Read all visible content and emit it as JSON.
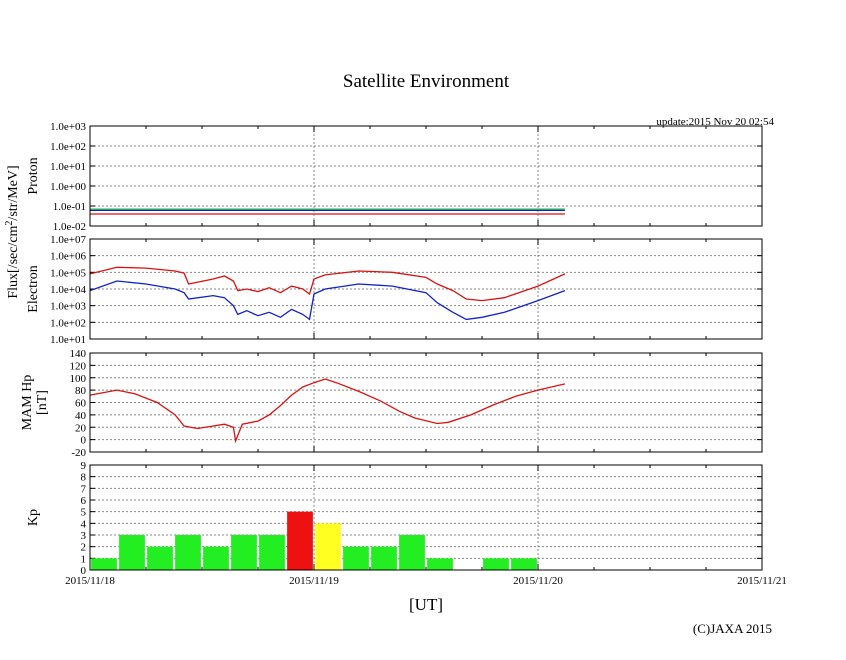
{
  "chart_data": [
    {
      "type": "line",
      "panel": "proton",
      "title": "Satellite Environment",
      "update": "update:2015 Nov 20 02:54",
      "ylabel_lines": [
        "Proton"
      ],
      "yscale": "log",
      "ylim": [
        0.01,
        1000.0
      ],
      "yticks": [
        "1.0e-02",
        "1.0e-01",
        "1.0e+00",
        "1.0e+01",
        "1.0e+02",
        "1.0e+03"
      ],
      "xlim_days": [
        0,
        3
      ],
      "series": [
        {
          "name": "proton-1",
          "color": "#dd1111",
          "x": [
            0,
            0.5,
            1.0,
            1.5,
            2.12
          ],
          "y": [
            0.04,
            0.04,
            0.04,
            0.04,
            0.04
          ]
        },
        {
          "name": "proton-2",
          "color": "#11bb33",
          "x": [
            0,
            0.5,
            1.0,
            1.5,
            2.12
          ],
          "y": [
            0.07,
            0.07,
            0.07,
            0.07,
            0.07
          ]
        },
        {
          "name": "proton-3",
          "color": "#1122cc",
          "x": [
            0,
            0.5,
            1.0,
            1.5,
            2.12
          ],
          "y": [
            0.06,
            0.06,
            0.06,
            0.06,
            0.06
          ]
        }
      ]
    },
    {
      "type": "line",
      "panel": "electron",
      "ylabel_lines": [
        "Electron"
      ],
      "yscale": "log",
      "ylim": [
        10.0,
        10000000.0
      ],
      "yticks": [
        "1.0e+01",
        "1.0e+02",
        "1.0e+03",
        "1.0e+04",
        "1.0e+05",
        "1.0e+06",
        "1.0e+07"
      ],
      "xlim_days": [
        0,
        3
      ],
      "series": [
        {
          "name": "electron-high",
          "color": "#dd1111",
          "x": [
            0,
            0.12,
            0.25,
            0.38,
            0.42,
            0.44,
            0.55,
            0.6,
            0.64,
            0.66,
            0.7,
            0.75,
            0.8,
            0.85,
            0.9,
            0.95,
            0.98,
            1.0,
            1.05,
            1.2,
            1.35,
            1.5,
            1.55,
            1.62,
            1.68,
            1.75,
            1.85,
            2.0,
            2.12
          ],
          "y": [
            80000,
            200000,
            180000,
            120000,
            90000,
            20000,
            40000,
            60000,
            30000,
            8000,
            10000,
            7000,
            12000,
            6000,
            15000,
            10000,
            5000,
            40000,
            70000,
            120000,
            100000,
            50000,
            20000,
            8000,
            2500,
            2000,
            3000,
            15000,
            80000
          ]
        },
        {
          "name": "electron-low",
          "color": "#1122cc",
          "x": [
            0,
            0.12,
            0.25,
            0.38,
            0.42,
            0.44,
            0.55,
            0.6,
            0.64,
            0.66,
            0.7,
            0.75,
            0.8,
            0.85,
            0.9,
            0.95,
            0.98,
            1.0,
            1.05,
            1.2,
            1.35,
            1.5,
            1.55,
            1.62,
            1.68,
            1.75,
            1.85,
            2.0,
            2.12
          ],
          "y": [
            8000,
            30000,
            20000,
            10000,
            6000,
            2500,
            4000,
            3000,
            1000,
            300,
            500,
            250,
            400,
            200,
            600,
            300,
            150,
            5000,
            10000,
            20000,
            15000,
            6000,
            1500,
            400,
            150,
            200,
            400,
            2000,
            8000
          ]
        }
      ]
    },
    {
      "type": "line",
      "panel": "mam-hp",
      "ylabel_lines": [
        "MAM Hp",
        "[nT]"
      ],
      "ylim": [
        -20,
        140
      ],
      "yticks": [
        "-20",
        "0",
        "20",
        "40",
        "60",
        "80",
        "100",
        "120",
        "140"
      ],
      "xlim_days": [
        0,
        3
      ],
      "series": [
        {
          "name": "hp",
          "color": "#dd1111",
          "x": [
            0,
            0.12,
            0.2,
            0.3,
            0.38,
            0.42,
            0.48,
            0.55,
            0.6,
            0.64,
            0.65,
            0.68,
            0.75,
            0.8,
            0.85,
            0.9,
            0.95,
            1.0,
            1.05,
            1.1,
            1.2,
            1.3,
            1.38,
            1.45,
            1.55,
            1.6,
            1.7,
            1.8,
            1.9,
            2.0,
            2.12
          ],
          "y": [
            72,
            80,
            74,
            60,
            40,
            22,
            18,
            22,
            25,
            20,
            -2,
            25,
            30,
            40,
            55,
            72,
            85,
            92,
            98,
            92,
            78,
            62,
            46,
            35,
            26,
            28,
            40,
            56,
            70,
            80,
            90
          ]
        }
      ]
    },
    {
      "type": "bar",
      "panel": "kp",
      "ylabel_lines": [
        "Kp"
      ],
      "ylim": [
        0,
        9
      ],
      "yticks": [
        "0",
        "1",
        "2",
        "3",
        "4",
        "5",
        "6",
        "7",
        "8",
        "9"
      ],
      "xlim_days": [
        0,
        3
      ],
      "bar_width_days": 0.125,
      "values": [
        1,
        3,
        2,
        3,
        2,
        3,
        3,
        5,
        4,
        2,
        2,
        3,
        1,
        0,
        1,
        1
      ],
      "colors": [
        "#22ee22",
        "#22ee22",
        "#22ee22",
        "#22ee22",
        "#22ee22",
        "#22ee22",
        "#22ee22",
        "#ee1111",
        "#ffff22",
        "#22ee22",
        "#22ee22",
        "#22ee22",
        "#22ee22",
        "#22ee22",
        "#22ee22",
        "#22ee22"
      ]
    }
  ],
  "shared": {
    "flux_label": "Flux[/sec/cm",
    "flux_sup": "2",
    "flux_label_tail": "/str/MeV]",
    "xticks": [
      "2015/11/18",
      "2015/11/19",
      "2015/11/20",
      "2015/11/21"
    ],
    "xlabel": "[UT]",
    "copyright": "(C)JAXA 2015"
  }
}
